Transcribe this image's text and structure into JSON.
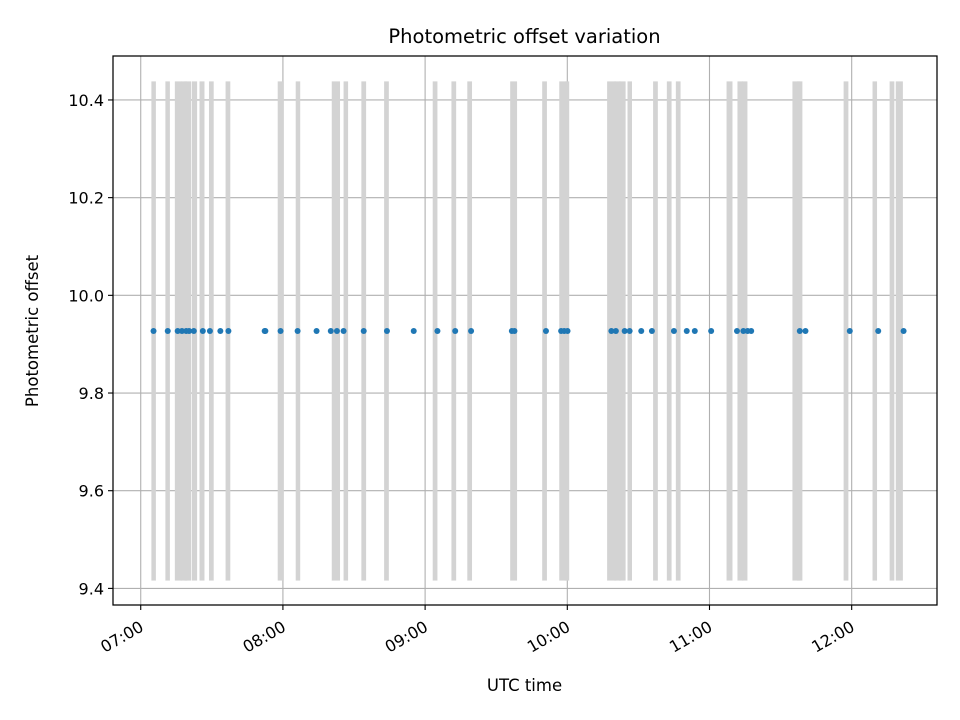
{
  "chart_data": {
    "type": "scatter",
    "title": "Photometric offset variation",
    "xlabel": "UTC time",
    "ylabel": "Photometric offset",
    "x_unit": "minutes since 00:00 UTC",
    "xlim": [
      408.3,
      756.0
    ],
    "ylim": [
      9.366,
      10.49
    ],
    "grid": true,
    "x_ticks": [
      {
        "value": 420,
        "label": "07:00"
      },
      {
        "value": 480,
        "label": "08:00"
      },
      {
        "value": 540,
        "label": "09:00"
      },
      {
        "value": 600,
        "label": "10:00"
      },
      {
        "value": 660,
        "label": "11:00"
      },
      {
        "value": 720,
        "label": "12:00"
      }
    ],
    "y_ticks": [
      {
        "value": 9.4,
        "label": "9.4"
      },
      {
        "value": 9.6,
        "label": "9.6"
      },
      {
        "value": 9.8,
        "label": "9.8"
      },
      {
        "value": 10.0,
        "label": "10.0"
      },
      {
        "value": 10.2,
        "label": "10.2"
      },
      {
        "value": 10.4,
        "label": "10.4"
      }
    ],
    "interval_band": {
      "y_low": 9.416,
      "y_high": 10.438,
      "color": "#d3d3d3"
    },
    "intervals": [
      [
        424.5,
        426.4
      ],
      [
        430.4,
        432.3
      ],
      [
        434.4,
        437.3
      ],
      [
        436.9,
        439.6
      ],
      [
        438.4,
        441.3
      ],
      [
        441.6,
        443.8
      ],
      [
        444.8,
        446.9
      ],
      [
        448.8,
        450.8
      ],
      [
        455.8,
        457.8
      ],
      [
        477.8,
        480.4
      ],
      [
        485.4,
        487.3
      ],
      [
        500.6,
        504.1
      ],
      [
        505.6,
        507.5
      ],
      [
        513.1,
        515.1
      ],
      [
        522.7,
        524.7
      ],
      [
        543.2,
        545.2
      ],
      [
        551.1,
        553.1
      ],
      [
        557.8,
        559.8
      ],
      [
        575.9,
        578.8
      ],
      [
        589.4,
        591.4
      ],
      [
        596.6,
        600.4
      ],
      [
        599.0,
        600.8
      ],
      [
        616.8,
        620.6
      ],
      [
        619.8,
        622.6
      ],
      [
        621.8,
        624.6
      ],
      [
        625.4,
        627.3
      ],
      [
        636.2,
        638.2
      ],
      [
        642.0,
        644.0
      ],
      [
        645.8,
        647.8
      ],
      [
        667.2,
        669.7
      ],
      [
        671.8,
        674.2
      ],
      [
        673.7,
        676.0
      ],
      [
        695.0,
        698.4
      ],
      [
        696.9,
        699.2
      ],
      [
        716.6,
        718.6
      ],
      [
        728.8,
        730.7
      ],
      [
        736.0,
        738.0
      ],
      [
        738.6,
        741.6
      ]
    ],
    "series": [
      {
        "name": "offset",
        "color": "#1f77b4",
        "x": [
          425.4,
          431.4,
          435.6,
          437.4,
          439.2,
          440.4,
          442.4,
          446.2,
          449.2,
          453.6,
          457.0,
          472.3,
          472.6,
          479.0,
          486.2,
          494.2,
          500.2,
          502.8,
          505.6,
          514.1,
          523.9,
          535.2,
          545.2,
          552.7,
          559.4,
          576.6,
          577.7,
          591.0,
          597.4,
          598.7,
          600.1,
          618.6,
          620.5,
          624.2,
          626.3,
          631.2,
          635.7,
          645.0,
          650.4,
          653.8,
          660.7,
          671.6,
          674.3,
          676.1,
          677.6,
          698.1,
          700.5,
          719.2,
          731.2,
          741.9
        ],
        "y": [
          9.927,
          9.927,
          9.927,
          9.927,
          9.927,
          9.927,
          9.927,
          9.927,
          9.927,
          9.927,
          9.927,
          9.927,
          9.927,
          9.927,
          9.927,
          9.927,
          9.927,
          9.927,
          9.927,
          9.927,
          9.927,
          9.927,
          9.927,
          9.927,
          9.927,
          9.927,
          9.927,
          9.927,
          9.927,
          9.927,
          9.927,
          9.927,
          9.927,
          9.927,
          9.927,
          9.927,
          9.927,
          9.927,
          9.927,
          9.927,
          9.927,
          9.927,
          9.927,
          9.927,
          9.927,
          9.927,
          9.927,
          9.927,
          9.927,
          9.927
        ]
      }
    ]
  }
}
